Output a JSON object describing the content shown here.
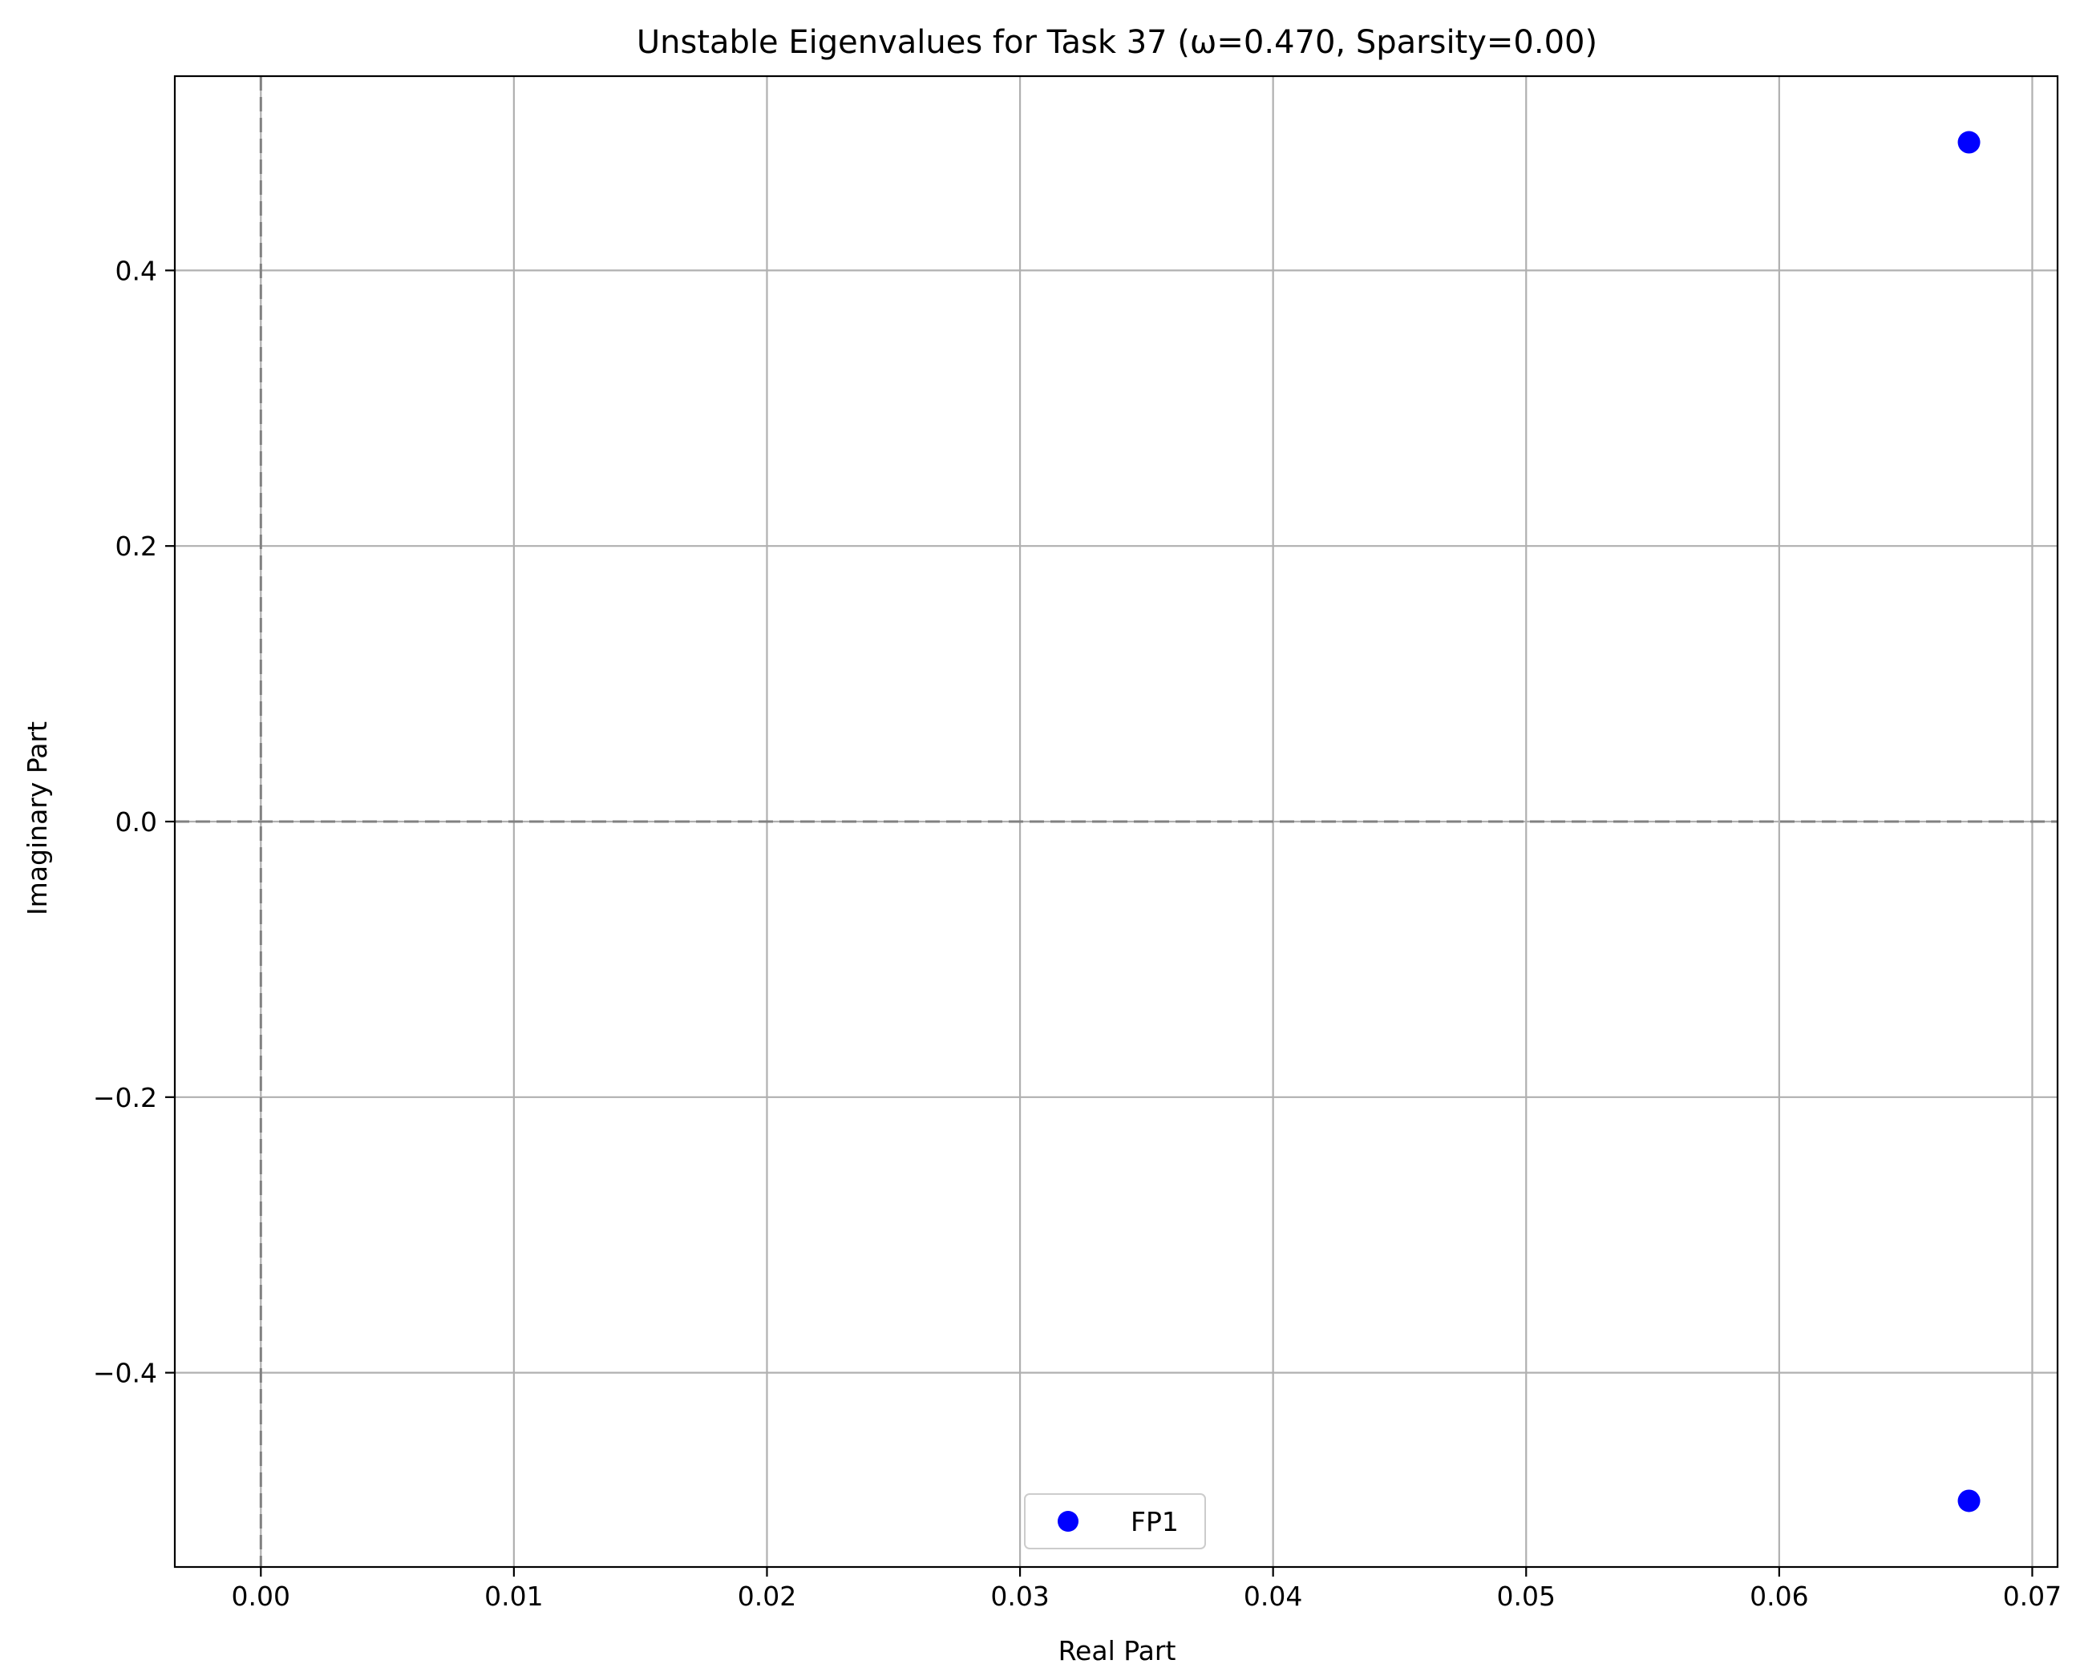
{
  "chart_data": {
    "type": "scatter",
    "title": "Unstable Eigenvalues for Task 37 (ω=0.470, Sparsity=0.00)",
    "xlabel": "Real Part",
    "ylabel": "Imaginary Part",
    "xlim": [
      -0.0034,
      0.071
    ],
    "ylim": [
      -0.541,
      0.541
    ],
    "xticks": [
      0.0,
      0.01,
      0.02,
      0.03,
      0.04,
      0.05,
      0.06,
      0.07
    ],
    "xtick_labels": [
      "0.00",
      "0.01",
      "0.02",
      "0.03",
      "0.04",
      "0.05",
      "0.06",
      "0.07"
    ],
    "yticks": [
      -0.4,
      -0.2,
      0.0,
      0.2,
      0.4
    ],
    "ytick_labels": [
      "−0.4",
      "−0.2",
      "0.0",
      "0.2",
      "0.4"
    ],
    "grid": true,
    "reference_lines": {
      "x": 0,
      "y": 0,
      "style": "dashed",
      "color": "#808080"
    },
    "legend": {
      "placement": "lower-center"
    },
    "series": [
      {
        "name": "FP1",
        "color": "#0000ff",
        "points": [
          {
            "x": 0.0675,
            "y": 0.493
          },
          {
            "x": 0.0675,
            "y": -0.493
          }
        ]
      }
    ]
  }
}
